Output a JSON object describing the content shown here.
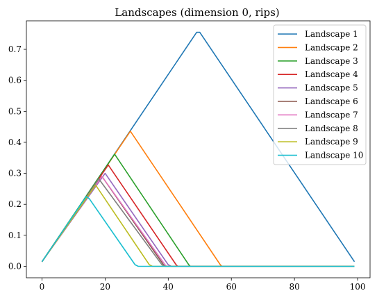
{
  "chart_data": {
    "type": "line",
    "title": "Landscapes (dimension 0, rips)",
    "xlabel": "",
    "ylabel": "",
    "xlim": [
      -4.95,
      103.95
    ],
    "ylim": [
      -0.037,
      0.792
    ],
    "x_ticks": [
      0,
      20,
      40,
      60,
      80,
      100
    ],
    "x_tick_labels": [
      "0",
      "20",
      "40",
      "60",
      "80",
      "100"
    ],
    "y_ticks": [
      0.0,
      0.1,
      0.2,
      0.3,
      0.4,
      0.5,
      0.6,
      0.7
    ],
    "y_tick_labels": [
      "0.0",
      "0.1",
      "0.2",
      "0.3",
      "0.4",
      "0.5",
      "0.6",
      "0.7"
    ],
    "grid": false,
    "legend_position": "top-right",
    "series": [
      {
        "name": "Landscape 1",
        "color": "#1f77b4",
        "x": [
          0,
          49,
          50,
          99
        ],
        "y": [
          0.015,
          0.755,
          0.755,
          0.015
        ]
      },
      {
        "name": "Landscape 2",
        "color": "#ff7f0e",
        "x": [
          0,
          28,
          56.5,
          57,
          99
        ],
        "y": [
          0.015,
          0.436,
          0.005,
          0.0,
          0.0
        ]
      },
      {
        "name": "Landscape 3",
        "color": "#2ca02c",
        "x": [
          0,
          23,
          46.5,
          47,
          99
        ],
        "y": [
          0.015,
          0.362,
          0.005,
          0.0,
          0.0
        ]
      },
      {
        "name": "Landscape 4",
        "color": "#d62728",
        "x": [
          0,
          21,
          42.5,
          43,
          99
        ],
        "y": [
          0.015,
          0.327,
          0.005,
          0.0,
          0.0
        ]
      },
      {
        "name": "Landscape 5",
        "color": "#9467bd",
        "x": [
          0,
          20,
          40,
          41,
          99
        ],
        "y": [
          0.015,
          0.3,
          0.005,
          0.0,
          0.0
        ]
      },
      {
        "name": "Landscape 6",
        "color": "#8c564b",
        "x": [
          0,
          19,
          38.5,
          39,
          99
        ],
        "y": [
          0.015,
          0.29,
          0.005,
          0.0,
          0.0
        ]
      },
      {
        "name": "Landscape 7",
        "color": "#e377c2",
        "x": [
          0,
          19,
          39,
          39.5,
          99
        ],
        "y": [
          0.015,
          0.29,
          0.005,
          0.0,
          0.0
        ]
      },
      {
        "name": "Landscape 8",
        "color": "#7f7f7f",
        "x": [
          0,
          18,
          38,
          39,
          99
        ],
        "y": [
          0.015,
          0.282,
          0.005,
          0.0,
          0.0
        ]
      },
      {
        "name": "Landscape 9",
        "color": "#bcbd22",
        "x": [
          0,
          17,
          34,
          35,
          99
        ],
        "y": [
          0.015,
          0.262,
          0.005,
          0.0,
          0.0
        ]
      },
      {
        "name": "Landscape 10",
        "color": "#17becf",
        "x": [
          0,
          14,
          15,
          29.5,
          30.5,
          99
        ],
        "y": [
          0.015,
          0.225,
          0.218,
          0.005,
          0.0,
          0.0
        ]
      }
    ]
  }
}
